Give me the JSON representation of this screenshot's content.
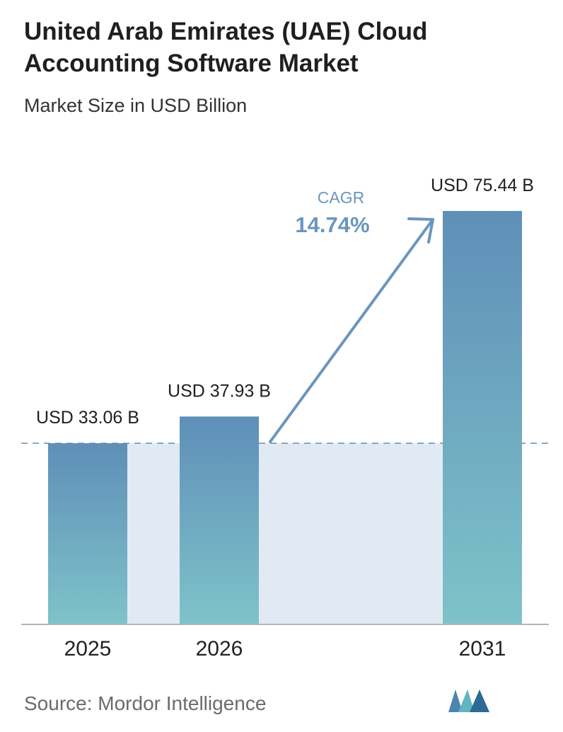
{
  "title": "United Arab Emirates (UAE) Cloud Accounting Software Market",
  "subtitle": "Market Size in USD Billion",
  "source": "Source:  Mordor Intelligence",
  "chart_data": {
    "type": "bar",
    "categories": [
      "2025",
      "2026",
      "2031"
    ],
    "values": [
      33.06,
      37.93,
      75.44
    ],
    "value_labels": [
      "USD 33.06 B",
      "USD 37.93 B",
      "USD 75.44 B"
    ],
    "ylim": [
      0,
      75.44
    ],
    "xlabel": "",
    "ylabel": "",
    "grid": false,
    "annotation": {
      "label": "CAGR",
      "value": "14.74%"
    }
  },
  "colors": {
    "bar_top": "#5f8fb8",
    "bar_bottom": "#7ec3c9",
    "band": "#e1eaf3",
    "cagr": "#6a96bd",
    "baseline": "#b5b5b5",
    "dashed": "#5f8fb8"
  },
  "logo": {
    "icon": "mordor-intelligence-logo-icon"
  }
}
